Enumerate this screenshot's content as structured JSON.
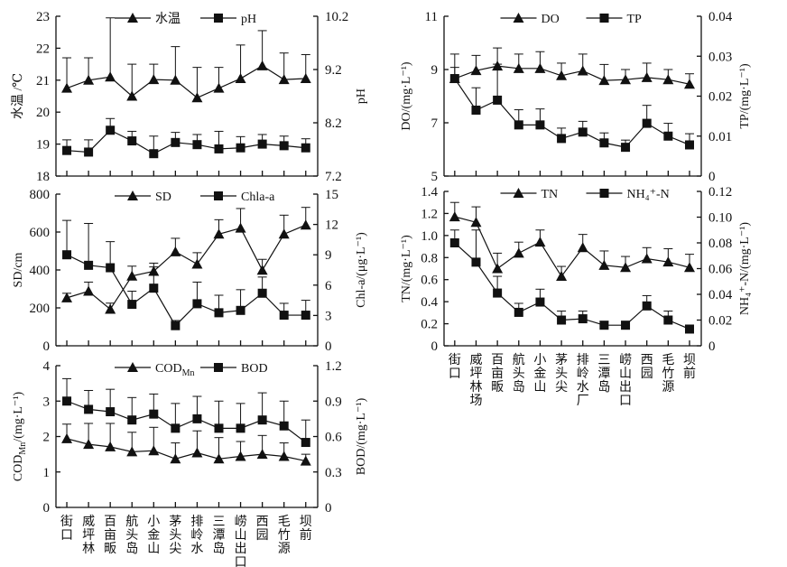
{
  "chart_data": [
    {
      "type": "line",
      "panel": "water-temp-ph",
      "categories": [
        "街口",
        "威坪林",
        "百亩畈",
        "航头岛",
        "小金山",
        "茅头尖",
        "排岭水",
        "三潭岛",
        "崂山出口",
        "西园",
        "毛竹源",
        "坝前"
      ],
      "show_categories": false,
      "ylabel": "水温 /℃",
      "y2label": "pH",
      "ylim": [
        18,
        23
      ],
      "yticks": [
        "18",
        "19",
        "20",
        "21",
        "22",
        "23"
      ],
      "y2lim": [
        7.2,
        10.2
      ],
      "y2ticks": [
        "7.2",
        "8.2",
        "9.2",
        "10.2"
      ],
      "series": [
        {
          "name": "水温",
          "marker": "triangle",
          "axis": "left",
          "values": [
            20.75,
            21.0,
            21.1,
            20.5,
            21.02,
            21.0,
            20.45,
            20.75,
            21.05,
            21.45,
            21.02,
            21.05
          ],
          "err_upper": [
            21.7,
            21.7,
            22.95,
            21.5,
            21.5,
            22.05,
            21.4,
            21.4,
            22.1,
            22.55,
            21.85,
            21.8
          ]
        },
        {
          "name": "pH",
          "marker": "square",
          "axis": "right",
          "values": [
            7.68,
            7.65,
            8.06,
            7.86,
            7.62,
            7.83,
            7.79,
            7.71,
            7.73,
            7.8,
            7.77,
            7.73
          ],
          "err_upper": [
            7.88,
            7.88,
            8.28,
            8.04,
            7.95,
            8.02,
            7.98,
            8.04,
            7.94,
            7.98,
            7.95,
            7.9
          ]
        }
      ]
    },
    {
      "type": "line",
      "panel": "sd-chla",
      "categories": [
        "街口",
        "威坪林",
        "百亩畈",
        "航头岛",
        "小金山",
        "茅头尖",
        "排岭水",
        "三潭岛",
        "崂山出口",
        "西园",
        "毛竹源",
        "坝前"
      ],
      "show_categories": false,
      "ylabel": "SD/cm",
      "y2label": "Chl-a/(μg·L⁻¹)",
      "ylim": [
        0,
        800
      ],
      "yticks": [
        "0",
        "200",
        "400",
        "600",
        "800"
      ],
      "y2lim": [
        0,
        15
      ],
      "y2ticks": [
        "0",
        "3",
        "6",
        "9",
        "12",
        "15"
      ],
      "series": [
        {
          "name": "SD",
          "marker": "triangle",
          "axis": "left",
          "values": [
            253,
            288,
            193,
            368,
            393,
            496,
            431,
            589,
            621,
            399,
            589,
            637
          ],
          "err_upper": [
            277,
            336,
            225,
            420,
            436,
            567,
            491,
            665,
            724,
            456,
            689,
            730
          ]
        },
        {
          "name": "Chla-a",
          "marker": "square",
          "axis": "right",
          "values": [
            9.0,
            7.96,
            7.72,
            4.1,
            5.7,
            1.99,
            4.16,
            3.27,
            3.5,
            5.2,
            3.03,
            3.03
          ],
          "err_upper": [
            12.4,
            12.1,
            10.3,
            5.4,
            7.8,
            2.5,
            6.3,
            5.0,
            5.55,
            6.8,
            4.2,
            4.5
          ]
        }
      ]
    },
    {
      "type": "line",
      "panel": "cod-bod",
      "categories": [
        "街口",
        "威坪林",
        "百亩畈",
        "航头岛",
        "小金山",
        "茅头尖",
        "排岭水",
        "三潭岛",
        "崂山出口",
        "西园",
        "毛竹源",
        "坝前"
      ],
      "show_categories": true,
      "ylabel": "COD_Mn/(mg·L⁻¹)",
      "y2label": "BOD/(mg·L⁻¹)",
      "ylim": [
        0,
        4
      ],
      "yticks": [
        "0",
        "1",
        "2",
        "3",
        "4"
      ],
      "y2lim": [
        0,
        1.2
      ],
      "y2ticks": [
        "0",
        "0.3",
        "0.6",
        "0.9",
        "1.2"
      ],
      "series": [
        {
          "name": "COD_Mn",
          "marker": "triangle",
          "axis": "left",
          "values": [
            1.94,
            1.78,
            1.71,
            1.57,
            1.6,
            1.37,
            1.54,
            1.37,
            1.44,
            1.5,
            1.44,
            1.31
          ],
          "err_upper": [
            2.35,
            2.37,
            2.37,
            2.12,
            2.26,
            1.82,
            2.16,
            1.97,
            1.86,
            2.03,
            1.82,
            1.5
          ]
        },
        {
          "name": "BOD",
          "marker": "square",
          "axis": "right",
          "values": [
            0.9,
            0.83,
            0.81,
            0.74,
            0.79,
            0.67,
            0.75,
            0.67,
            0.67,
            0.74,
            0.69,
            0.55
          ],
          "err_upper": [
            1.09,
            0.99,
            1.0,
            0.93,
            0.96,
            0.88,
            0.94,
            0.9,
            0.88,
            0.97,
            0.9,
            0.74
          ]
        }
      ]
    },
    {
      "type": "line",
      "panel": "do-tp",
      "categories": [
        "街口",
        "威坪林场",
        "百亩畈",
        "航头岛",
        "小金山",
        "茅头尖",
        "排岭水厂",
        "三潭岛",
        "崂山出口",
        "西园",
        "毛竹源",
        "坝前"
      ],
      "show_categories": false,
      "ylabel": "DO/(mg·L⁻¹)",
      "y2label": "TP/(mg·L⁻¹)",
      "ylim": [
        5,
        11
      ],
      "yticks": [
        "5",
        "7",
        "9",
        "11"
      ],
      "y2lim": [
        0,
        0.04
      ],
      "y2ticks": [
        "0",
        "0.01",
        "0.02",
        "0.03",
        "0.04"
      ],
      "series": [
        {
          "name": "DO",
          "marker": "triangle",
          "axis": "left",
          "values": [
            8.66,
            8.96,
            9.13,
            9.04,
            9.04,
            8.77,
            8.95,
            8.59,
            8.62,
            8.7,
            8.62,
            8.45
          ],
          "err_upper": [
            9.58,
            9.53,
            9.81,
            9.58,
            9.67,
            9.24,
            9.58,
            9.19,
            9.0,
            9.24,
            9.0,
            8.84
          ]
        },
        {
          "name": "TP",
          "marker": "square",
          "axis": "right",
          "values": [
            0.0244,
            0.0165,
            0.019,
            0.0128,
            0.0128,
            0.0094,
            0.011,
            0.0083,
            0.0072,
            0.0132,
            0.01,
            0.0078
          ],
          "err_upper": [
            0.0272,
            0.0221,
            0.028,
            0.0166,
            0.0168,
            0.012,
            0.0137,
            0.0108,
            0.009,
            0.0177,
            0.0132,
            0.0106
          ]
        }
      ]
    },
    {
      "type": "line",
      "panel": "tn-nh4",
      "categories": [
        "街口",
        "威坪林场",
        "百亩畈",
        "航头岛",
        "小金山",
        "茅头尖",
        "排岭水厂",
        "三潭岛",
        "崂山出口",
        "西园",
        "毛竹源",
        "坝前"
      ],
      "show_categories": true,
      "ylabel": "TN/(mg·L⁻¹)",
      "y2label": "NH₄⁺-N/(mg·L⁻¹)",
      "ylim": [
        0,
        1.4
      ],
      "yticks": [
        "0",
        "0.2",
        "0.4",
        "0.6",
        "0.8",
        "1.0",
        "1.2",
        "1.4"
      ],
      "y2lim": [
        0,
        0.12
      ],
      "y2ticks": [
        "0",
        "0.02",
        "0.04",
        "0.06",
        "0.08",
        "0.10",
        "0.12"
      ],
      "series": [
        {
          "name": "TN",
          "marker": "triangle",
          "axis": "left",
          "values": [
            1.17,
            1.12,
            0.7,
            0.84,
            0.94,
            0.63,
            0.89,
            0.73,
            0.71,
            0.79,
            0.76,
            0.71
          ],
          "err_upper": [
            1.3,
            1.26,
            0.84,
            0.94,
            1.05,
            0.72,
            1.01,
            0.86,
            0.81,
            0.89,
            0.88,
            0.83
          ]
        },
        {
          "name": "NH₄⁺-N",
          "marker": "square",
          "axis": "right",
          "values": [
            0.08,
            0.065,
            0.041,
            0.026,
            0.034,
            0.02,
            0.021,
            0.016,
            0.016,
            0.031,
            0.02,
            0.013
          ],
          "err_upper": [
            0.09,
            0.09,
            0.054,
            0.033,
            0.044,
            0.027,
            0.027,
            0.019,
            0.019,
            0.039,
            0.027,
            0.013
          ]
        }
      ]
    }
  ]
}
